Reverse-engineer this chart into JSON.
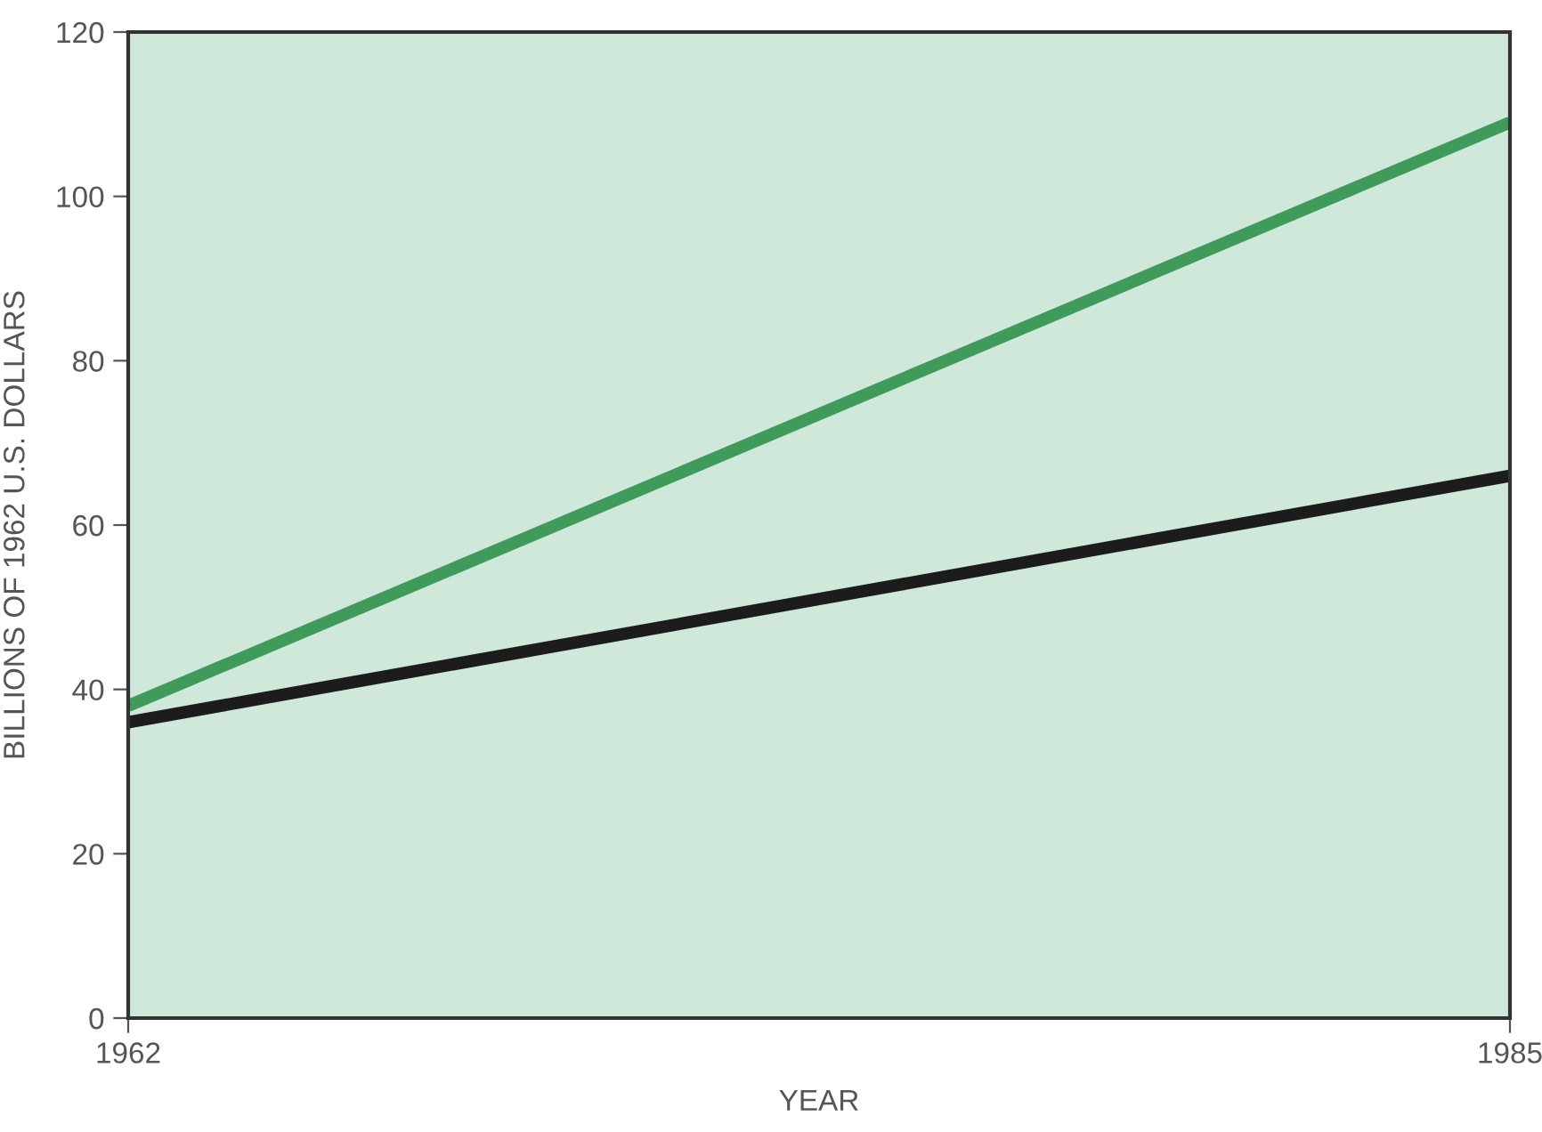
{
  "chart_data": {
    "type": "line",
    "xlabel": "YEAR",
    "ylabel": "BILLIONS OF 1962 U.S. DOLLARS",
    "x": [
      1962,
      1985
    ],
    "series": [
      {
        "color": "#3f9a5c",
        "values": [
          38,
          109
        ]
      },
      {
        "color": "#1c1c1c",
        "values": [
          36,
          66
        ]
      }
    ],
    "xlim": [
      1962,
      1985
    ],
    "xticks": [
      1962,
      1985
    ],
    "ylim": [
      0,
      120
    ],
    "yticks": [
      0,
      20,
      40,
      60,
      80,
      100,
      120
    ],
    "grid": false,
    "marker": "none",
    "line_style": "solid"
  }
}
